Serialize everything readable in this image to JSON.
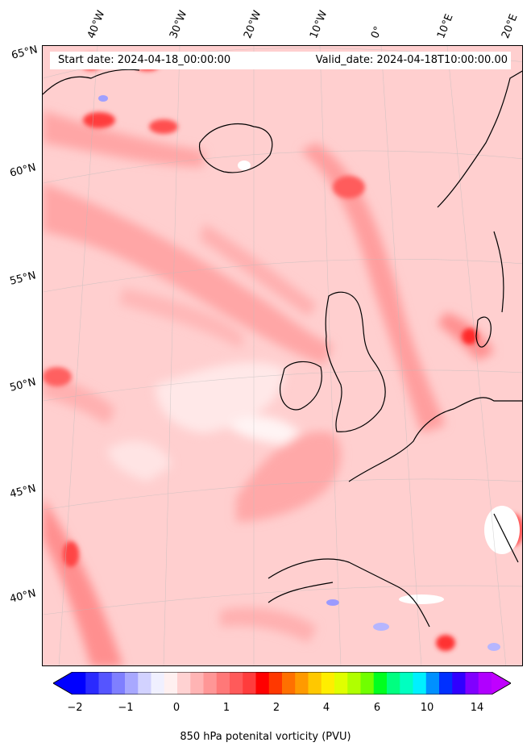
{
  "map": {
    "start_date": "Start date: 2024-04-18_00:00:00",
    "valid_date": "Valid_date: 2024-04-18T10:00:00.00",
    "longitude_labels": [
      "40°W",
      "30°W",
      "20°W",
      "10°W",
      "0°",
      "10°E",
      "20°E"
    ],
    "latitude_labels": [
      "65°N",
      "60°N",
      "55°N",
      "50°N",
      "45°N",
      "40°N"
    ],
    "projection_region": "North Atlantic and Western Europe",
    "field": "850 hPa potential vorticity"
  },
  "colorbar": {
    "label": "850 hPa potenital vorticity (PVU)",
    "ticks": [
      "−2",
      "−1",
      "0",
      "1",
      "2",
      "4",
      "6",
      "10",
      "14"
    ],
    "colors": [
      "#0000ff",
      "#2a2aff",
      "#5555ff",
      "#7f7fff",
      "#a8a8ff",
      "#d2d2ff",
      "#f0f0ff",
      "#fff0f0",
      "#ffd2d2",
      "#ffb4b4",
      "#ff9696",
      "#ff7878",
      "#ff5a5a",
      "#ff3c3c",
      "#ff0000",
      "#ff3800",
      "#ff7000",
      "#ff9a00",
      "#ffc800",
      "#ffee00",
      "#e0ff00",
      "#b0ff00",
      "#70ff00",
      "#00ff20",
      "#00ff80",
      "#00ffc0",
      "#00f0ff",
      "#0090ff",
      "#0030ff",
      "#3000ff",
      "#8000ff",
      "#b000ff"
    ],
    "under_color": "#0000ff",
    "over_color": "#c000ff"
  }
}
